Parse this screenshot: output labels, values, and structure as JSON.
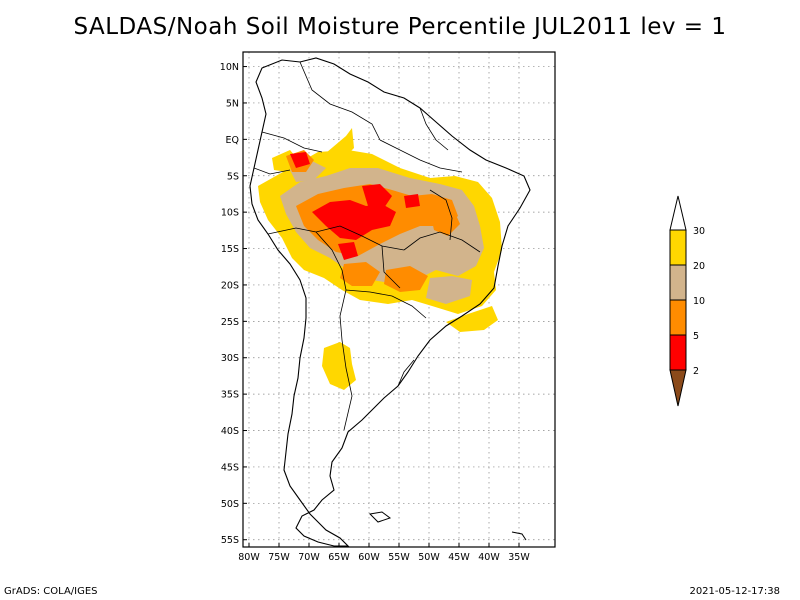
{
  "title": "SALDAS/Noah Soil Moisture Percentile JUL2011 lev = 1",
  "footer": {
    "left": "GrADS: COLA/IGES",
    "right": "2021-05-12-17:38"
  },
  "map": {
    "region": "South America",
    "projection": "lat-lon",
    "lon_range": [
      -81,
      -29
    ],
    "lat_range": [
      -56,
      12
    ],
    "grid": "dotted",
    "lat_ticks": [
      {
        "label": "10N",
        "lat": 10
      },
      {
        "label": "5N",
        "lat": 5
      },
      {
        "label": "EQ",
        "lat": 0
      },
      {
        "label": "5S",
        "lat": -5
      },
      {
        "label": "10S",
        "lat": -10
      },
      {
        "label": "15S",
        "lat": -15
      },
      {
        "label": "20S",
        "lat": -20
      },
      {
        "label": "25S",
        "lat": -25
      },
      {
        "label": "30S",
        "lat": -30
      },
      {
        "label": "35S",
        "lat": -35
      },
      {
        "label": "40S",
        "lat": -40
      },
      {
        "label": "45S",
        "lat": -45
      },
      {
        "label": "50S",
        "lat": -50
      },
      {
        "label": "55S",
        "lat": -55
      }
    ],
    "lon_ticks": [
      {
        "label": "80W",
        "lon": -80
      },
      {
        "label": "75W",
        "lon": -75
      },
      {
        "label": "70W",
        "lon": -70
      },
      {
        "label": "65W",
        "lon": -65
      },
      {
        "label": "60W",
        "lon": -60
      },
      {
        "label": "55W",
        "lon": -55
      },
      {
        "label": "50W",
        "lon": -50
      },
      {
        "label": "45W",
        "lon": -45
      },
      {
        "label": "40W",
        "lon": -40
      },
      {
        "label": "35W",
        "lon": -35
      }
    ]
  },
  "colorbar": {
    "type": "discrete",
    "levels": [
      "2",
      "5",
      "10",
      "20",
      "30"
    ],
    "colors": {
      "below_2": "#8b4a1a",
      "2_5": "#ff0000",
      "5_10": "#ff8c00",
      "10_20": "#d2b48c",
      "20_30": "#ffd700",
      "above_30": "#ffffff"
    }
  },
  "shading_colors": {
    "yellow": "#ffd700",
    "tan": "#d2b48c",
    "orange": "#ff8c00",
    "red": "#ff0000"
  }
}
